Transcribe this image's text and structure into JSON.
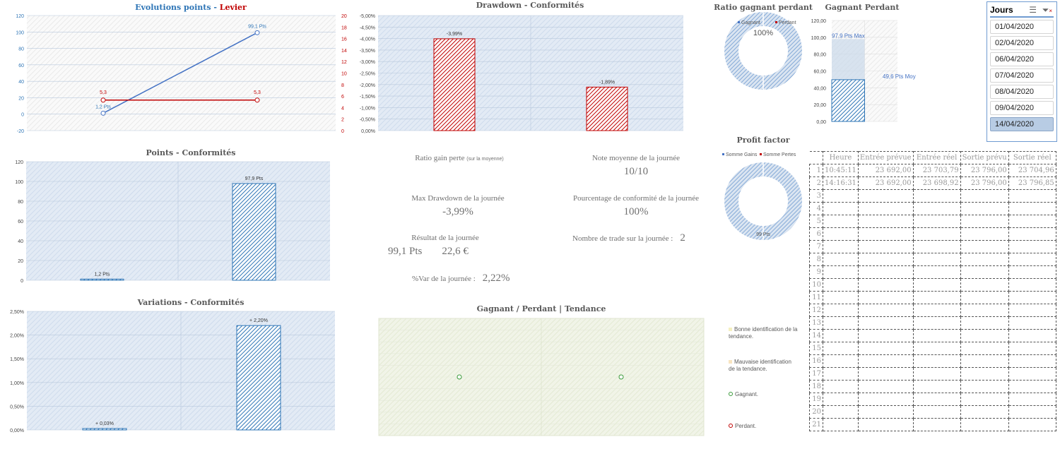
{
  "charts": {
    "evolution": {
      "title_a": "Evolutions points - ",
      "title_b": "Levier",
      "left_ticks": [
        "120",
        "100",
        "80",
        "60",
        "40",
        "20",
        "0",
        "-20"
      ],
      "right_ticks": [
        "20",
        "18",
        "16",
        "14",
        "12",
        "10",
        "8",
        "6",
        "4",
        "2",
        "0"
      ],
      "points": [
        1.2,
        99.1
      ],
      "point_labels": [
        "1,2 Pts",
        "99,1 Pts"
      ],
      "levier": [
        5.3,
        5.3
      ],
      "levier_labels": [
        "5,3",
        "5,3"
      ],
      "ylim": [
        -20,
        120
      ],
      "y2lim": [
        0,
        20
      ]
    },
    "drawdown": {
      "title": "Drawdown - Conformités",
      "ticks": [
        "-5,00%",
        "-4,50%",
        "-4,00%",
        "-3,50%",
        "-3,00%",
        "-2,50%",
        "-2,00%",
        "-1,50%",
        "-1,00%",
        "-0,50%",
        "0,00%"
      ],
      "values": [
        -3.99,
        -1.89
      ],
      "labels": [
        "-3,99%",
        "-1,89%"
      ]
    },
    "points": {
      "title": "Points - Conformités",
      "ticks": [
        "120",
        "100",
        "80",
        "60",
        "40",
        "20",
        "0"
      ],
      "values": [
        1.2,
        97.9
      ],
      "labels": [
        "1,2 Pts",
        "97,9 Pts"
      ]
    },
    "variations": {
      "title": "Variations - Conformités",
      "ticks": [
        "2,50%",
        "2,00%",
        "1,50%",
        "1,00%",
        "0,50%",
        "0,00%"
      ],
      "values": [
        0.03,
        2.2
      ],
      "labels": [
        "+ 0,03%",
        "+ 2,20%"
      ]
    },
    "tendance": {
      "title": "Gagnant / Perdant | Tendance"
    },
    "ratio": {
      "title": "Ratio gagnant perdant",
      "legend": [
        "Gagnant",
        "Perdant"
      ],
      "label": "100%",
      "gagnant_pct": 100
    },
    "gagnant_perdant": {
      "title": "Gagnant Perdant",
      "ticks": [
        "120,00",
        "100,00",
        "80,00",
        "60,00",
        "40,00",
        "20,00",
        "0,00"
      ],
      "max": 97.9,
      "moy": 49.6,
      "max_label": "97,9 Pts Max",
      "moy_label": "49,6 Pts Moy"
    },
    "profit": {
      "title": "Profit factor",
      "legend": [
        "Somme Gains",
        "Somme Pertes"
      ],
      "label": "99 Pts"
    }
  },
  "stats": {
    "ratio_label": "Ratio gain perte",
    "ratio_sub": "(sur la moyenne)",
    "note_label": "Note moyenne de la journée",
    "note_value": "10/10",
    "dd_label": "Max Drawdown de la journée",
    "dd_value": "-3,99%",
    "conf_label": "Pourcentage de conformité de la journée",
    "conf_value": "100%",
    "result_label": "Résultat de la journée",
    "result_pts": "99,1 Pts",
    "result_eur": "22,6 €",
    "trades_label": "Nombre de trade sur la journée :",
    "trades_value": "2",
    "var_label": "%Var de la journée :",
    "var_value": "2,22%"
  },
  "slicer": {
    "title": "Jours",
    "items": [
      "01/04/2020",
      "02/04/2020",
      "06/04/2020",
      "07/04/2020",
      "08/04/2020",
      "09/04/2020",
      "14/04/2020"
    ],
    "selected": "14/04/2020"
  },
  "legend": [
    "Bonne identification de la tendance.",
    "Mauvaise identification de la tendance.",
    "Gagnant.",
    "Perdant."
  ],
  "table": {
    "headers": [
      "Heure",
      "Entrée prévue",
      "Entrée réel",
      "Sortie prévu",
      "Sortie réel"
    ],
    "rows": [
      [
        "10:45:11",
        "23 692,00",
        "23 703,79",
        "23 796,00",
        "23 704,96"
      ],
      [
        "14:16:31",
        "23 692,00",
        "23 698,92",
        "23 796,00",
        "23 796,85"
      ]
    ],
    "row_count": 21
  },
  "colors": {
    "blue": "#4472c4",
    "red": "#c00000",
    "bar_blue": "#2e75b6",
    "plot_bg": "#dbe5f1",
    "tend_bg": "#eef2e4"
  }
}
